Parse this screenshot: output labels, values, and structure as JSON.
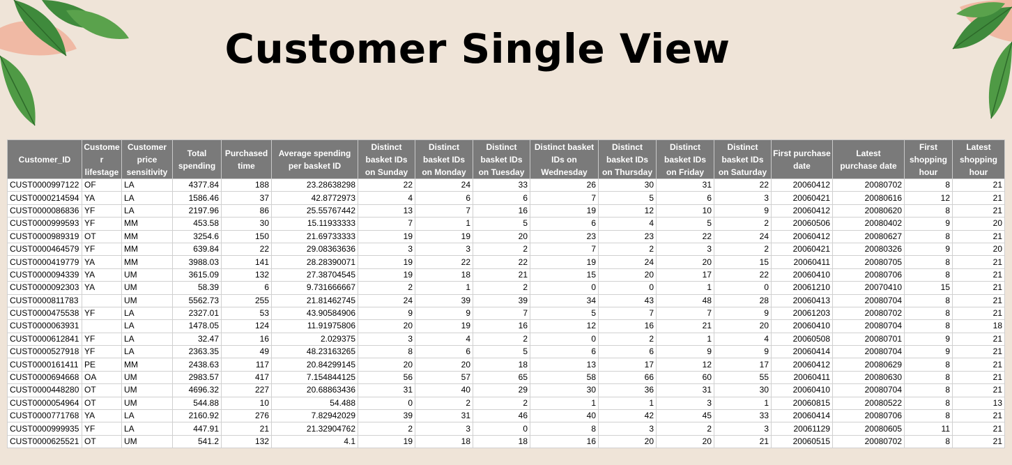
{
  "page": {
    "title": "Customer Single View"
  },
  "table": {
    "columns": [
      "Customer_ID",
      "Custome\nr\nlifestage",
      "Customer\nprice\nsensitivity",
      "Total\nspending",
      "Purchased\ntime",
      "Average spending\nper basket ID",
      "Distinct\nbasket IDs\non Sunday",
      "Distinct\nbasket IDs\non Monday",
      "Distinct\nbasket IDs\non Tuesday",
      "Distinct basket\nIDs on\nWednesday",
      "Distinct\nbasket IDs\non Thursday",
      "Distinct\nbasket IDs\non Friday",
      "Distinct\nbasket IDs\non Saturday",
      "First purchase\ndate",
      "Latest\npurchase date",
      "First\nshopping\nhour",
      "Latest\nshopping\nhour"
    ],
    "rows": [
      [
        "CUST0000997122",
        "OF",
        "LA",
        "4377.84",
        "188",
        "23.28638298",
        "22",
        "24",
        "33",
        "26",
        "30",
        "31",
        "22",
        "20060412",
        "20080702",
        "8",
        "21"
      ],
      [
        "CUST0000214594",
        "YA",
        "LA",
        "1586.46",
        "37",
        "42.8772973",
        "4",
        "6",
        "6",
        "7",
        "5",
        "6",
        "3",
        "20060421",
        "20080616",
        "12",
        "21"
      ],
      [
        "CUST0000086836",
        "YF",
        "LA",
        "2197.96",
        "86",
        "25.55767442",
        "13",
        "7",
        "16",
        "19",
        "12",
        "10",
        "9",
        "20060412",
        "20080620",
        "8",
        "21"
      ],
      [
        "CUST0000999593",
        "YF",
        "MM",
        "453.58",
        "30",
        "15.11933333",
        "7",
        "1",
        "5",
        "6",
        "4",
        "5",
        "2",
        "20060506",
        "20080402",
        "9",
        "20"
      ],
      [
        "CUST0000989319",
        "OT",
        "MM",
        "3254.6",
        "150",
        "21.69733333",
        "19",
        "19",
        "20",
        "23",
        "23",
        "22",
        "24",
        "20060412",
        "20080627",
        "8",
        "21"
      ],
      [
        "CUST0000464579",
        "YF",
        "MM",
        "639.84",
        "22",
        "29.08363636",
        "3",
        "3",
        "2",
        "7",
        "2",
        "3",
        "2",
        "20060421",
        "20080326",
        "9",
        "20"
      ],
      [
        "CUST0000419779",
        "YA",
        "MM",
        "3988.03",
        "141",
        "28.28390071",
        "19",
        "22",
        "22",
        "19",
        "24",
        "20",
        "15",
        "20060411",
        "20080705",
        "8",
        "21"
      ],
      [
        "CUST0000094339",
        "YA",
        "UM",
        "3615.09",
        "132",
        "27.38704545",
        "19",
        "18",
        "21",
        "15",
        "20",
        "17",
        "22",
        "20060410",
        "20080706",
        "8",
        "21"
      ],
      [
        "CUST0000092303",
        "YA",
        "UM",
        "58.39",
        "6",
        "9.731666667",
        "2",
        "1",
        "2",
        "0",
        "0",
        "1",
        "0",
        "20061210",
        "20070410",
        "15",
        "21"
      ],
      [
        "CUST0000811783",
        "",
        "UM",
        "5562.73",
        "255",
        "21.81462745",
        "24",
        "39",
        "39",
        "34",
        "43",
        "48",
        "28",
        "20060413",
        "20080704",
        "8",
        "21"
      ],
      [
        "CUST0000475538",
        "YF",
        "LA",
        "2327.01",
        "53",
        "43.90584906",
        "9",
        "9",
        "7",
        "5",
        "7",
        "7",
        "9",
        "20061203",
        "20080702",
        "8",
        "21"
      ],
      [
        "CUST0000063931",
        "",
        "LA",
        "1478.05",
        "124",
        "11.91975806",
        "20",
        "19",
        "16",
        "12",
        "16",
        "21",
        "20",
        "20060410",
        "20080704",
        "8",
        "18"
      ],
      [
        "CUST0000612841",
        "YF",
        "LA",
        "32.47",
        "16",
        "2.029375",
        "3",
        "4",
        "2",
        "0",
        "2",
        "1",
        "4",
        "20060508",
        "20080701",
        "9",
        "21"
      ],
      [
        "CUST0000527918",
        "YF",
        "LA",
        "2363.35",
        "49",
        "48.23163265",
        "8",
        "6",
        "5",
        "6",
        "6",
        "9",
        "9",
        "20060414",
        "20080704",
        "9",
        "21"
      ],
      [
        "CUST0000161411",
        "PE",
        "MM",
        "2438.63",
        "117",
        "20.84299145",
        "20",
        "20",
        "18",
        "13",
        "17",
        "12",
        "17",
        "20060412",
        "20080629",
        "8",
        "21"
      ],
      [
        "CUST0000694668",
        "OA",
        "UM",
        "2983.57",
        "417",
        "7.154844125",
        "56",
        "57",
        "65",
        "58",
        "66",
        "60",
        "55",
        "20060411",
        "20080630",
        "8",
        "21"
      ],
      [
        "CUST0000448280",
        "OT",
        "UM",
        "4696.32",
        "227",
        "20.68863436",
        "31",
        "40",
        "29",
        "30",
        "36",
        "31",
        "30",
        "20060410",
        "20080704",
        "8",
        "21"
      ],
      [
        "CUST0000054964",
        "OT",
        "UM",
        "544.88",
        "10",
        "54.488",
        "0",
        "2",
        "2",
        "1",
        "1",
        "3",
        "1",
        "20060815",
        "20080522",
        "8",
        "13"
      ],
      [
        "CUST0000771768",
        "YA",
        "LA",
        "2160.92",
        "276",
        "7.82942029",
        "39",
        "31",
        "46",
        "40",
        "42",
        "45",
        "33",
        "20060414",
        "20080706",
        "8",
        "21"
      ],
      [
        "CUST0000999935",
        "YF",
        "LA",
        "447.91",
        "21",
        "21.32904762",
        "2",
        "3",
        "0",
        "8",
        "3",
        "2",
        "3",
        "20061129",
        "20080605",
        "11",
        "21"
      ],
      [
        "CUST0000625521",
        "OT",
        "UM",
        "541.2",
        "132",
        "4.1",
        "19",
        "18",
        "18",
        "16",
        "20",
        "20",
        "21",
        "20060515",
        "20080702",
        "8",
        "21"
      ]
    ]
  },
  "colors": {
    "background": "#efe4d8",
    "header_bg": "#7a7a7a",
    "leaf_green": "#3f8a3c",
    "leaf_pink": "#f0b9a4"
  },
  "decorations": {
    "left": "plant-leaves-icon",
    "right": "plant-leaves-icon"
  }
}
